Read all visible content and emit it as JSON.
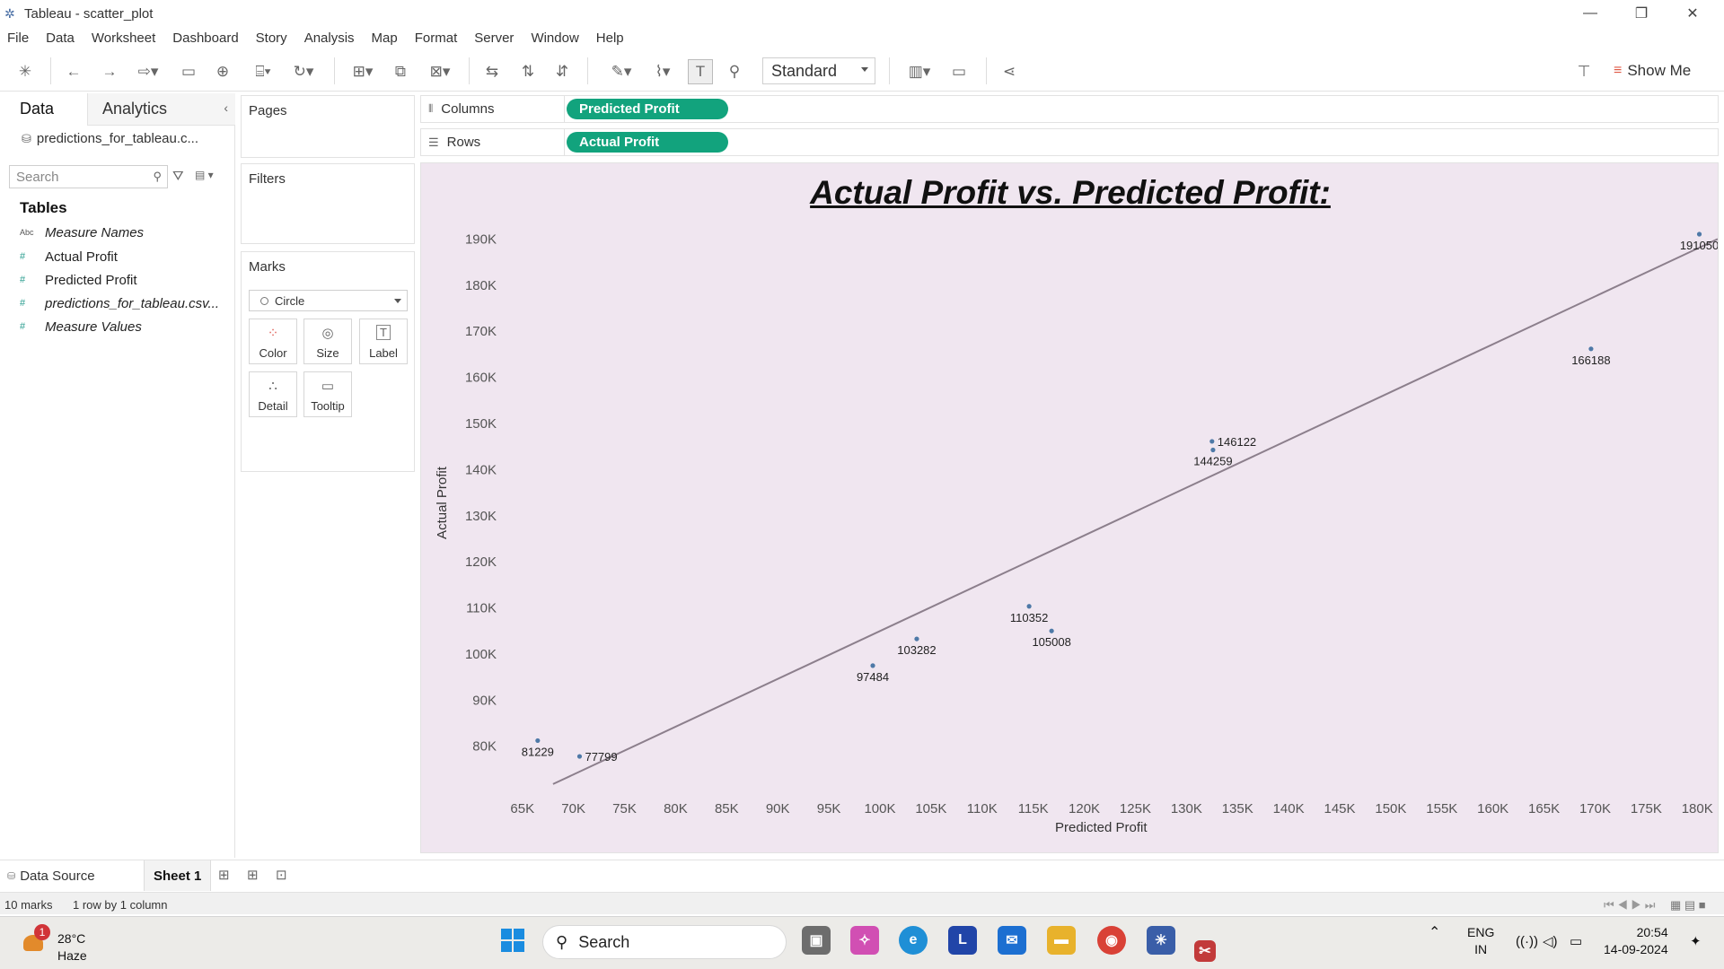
{
  "window": {
    "title": "Tableau - scatter_plot"
  },
  "menu": [
    "File",
    "Data",
    "Worksheet",
    "Dashboard",
    "Story",
    "Analysis",
    "Map",
    "Format",
    "Server",
    "Window",
    "Help"
  ],
  "toolbar": {
    "fit_mode": "Standard",
    "show_me": "Show Me"
  },
  "data_pane": {
    "tab_data": "Data",
    "tab_analytics": "Analytics",
    "datasource": "predictions_for_tableau.c...",
    "search_placeholder": "Search",
    "tables_heading": "Tables",
    "fields": [
      {
        "type": "Abc",
        "name": "Measure Names",
        "italic": true
      },
      {
        "type": "#",
        "name": "Actual Profit",
        "italic": false
      },
      {
        "type": "#",
        "name": "Predicted Profit",
        "italic": false
      },
      {
        "type": "#",
        "name": "predictions_for_tableau.csv...",
        "italic": true
      },
      {
        "type": "#",
        "name": "Measure Values",
        "italic": true
      }
    ]
  },
  "cards": {
    "pages": "Pages",
    "filters": "Filters",
    "marks": "Marks",
    "mark_type": "Circle",
    "buttons": [
      "Color",
      "Size",
      "Label",
      "Detail",
      "Tooltip"
    ]
  },
  "shelves": {
    "columns_label": "Columns",
    "columns_pill": "Predicted Profit",
    "rows_label": "Rows",
    "rows_pill": "Actual Profit"
  },
  "chart_data": {
    "type": "scatter",
    "title": "Actual Profit vs. Predicted Profit:",
    "xlabel": "Predicted Profit",
    "ylabel": "Actual Profit",
    "xlim": [
      63000,
      182000
    ],
    "ylim": [
      71000,
      193000
    ],
    "x_ticks": [
      "65K",
      "70K",
      "75K",
      "80K",
      "85K",
      "90K",
      "95K",
      "100K",
      "105K",
      "110K",
      "115K",
      "120K",
      "125K",
      "130K",
      "135K",
      "140K",
      "145K",
      "150K",
      "155K",
      "160K",
      "165K",
      "170K",
      "175K",
      "180K"
    ],
    "x_tick_values": [
      65000,
      70000,
      75000,
      80000,
      85000,
      90000,
      95000,
      100000,
      105000,
      110000,
      115000,
      120000,
      125000,
      130000,
      135000,
      140000,
      145000,
      150000,
      155000,
      160000,
      165000,
      170000,
      175000,
      180000
    ],
    "y_ticks": [
      "80K",
      "90K",
      "100K",
      "110K",
      "120K",
      "130K",
      "140K",
      "150K",
      "160K",
      "170K",
      "180K",
      "190K"
    ],
    "y_tick_values": [
      80000,
      90000,
      100000,
      110000,
      120000,
      130000,
      140000,
      150000,
      160000,
      170000,
      180000,
      190000
    ],
    "grid": false,
    "mark_color": "#4e79a7",
    "points": [
      {
        "x": 66500,
        "y": 81229,
        "label": "81229",
        "label_pos": "below"
      },
      {
        "x": 70600,
        "y": 77799,
        "label": "77799",
        "label_pos": "right"
      },
      {
        "x": 99300,
        "y": 97484,
        "label": "97484",
        "label_pos": "below"
      },
      {
        "x": 103600,
        "y": 103282,
        "label": "103282",
        "label_pos": "below"
      },
      {
        "x": 114600,
        "y": 110352,
        "label": "110352",
        "label_pos": "below"
      },
      {
        "x": 116800,
        "y": 105008,
        "label": "105008",
        "label_pos": "below"
      },
      {
        "x": 132500,
        "y": 146122,
        "label": "146122",
        "label_pos": "right"
      },
      {
        "x": 132600,
        "y": 144259,
        "label": "144259",
        "label_pos": "below"
      },
      {
        "x": 169600,
        "y": 166188,
        "label": "166188",
        "label_pos": "below"
      },
      {
        "x": 180200,
        "y": 191050,
        "label": "191050",
        "label_pos": "below"
      }
    ],
    "trend_line": {
      "x": [
        68000,
        182000
      ],
      "y": [
        71800,
        190000
      ],
      "color": "#8c7f8c"
    }
  },
  "bottom": {
    "data_source_tab": "Data Source",
    "sheet_tab": "Sheet 1"
  },
  "status": {
    "marks": "10 marks",
    "dims": "1 row by 1 column"
  },
  "taskbar": {
    "weather_badge": "1",
    "temperature": "28°C",
    "condition": "Haze",
    "search": "Search",
    "lang": "ENG",
    "region": "IN",
    "time": "20:54",
    "date": "14-09-2024"
  }
}
